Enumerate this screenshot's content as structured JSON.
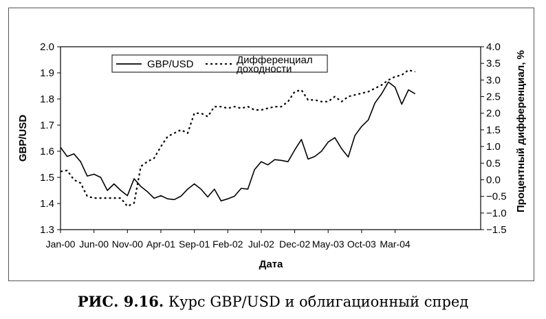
{
  "caption": {
    "number": "РИС. 9.16.",
    "text": "Курс GBP/USD и облигационный спред"
  },
  "chart_data": {
    "type": "line",
    "title": "",
    "xlabel": "Дата",
    "ylabel": "GBP/USD",
    "y2label": "Процентный дифференциал, %",
    "ylim": [
      1.3,
      2.0
    ],
    "y2lim": [
      -1.5,
      4.0
    ],
    "yticks": [
      "2.0",
      "1.9",
      "1.8",
      "1.7",
      "1.6",
      "1.5",
      "1.4",
      "1.3"
    ],
    "y2ticks": [
      "4.0",
      "3.5",
      "3.0",
      "2.5",
      "2.0",
      "1.5",
      "1.0",
      "0.5",
      "0.0",
      "−0.5",
      "−1.0",
      "−1.5"
    ],
    "xticks": [
      "Jan-00",
      "Jun-00",
      "Nov-00",
      "Apr-01",
      "Sep-01",
      "Feb-02",
      "Jul-02",
      "Dec-02",
      "May-03",
      "Oct-03",
      "Mar-04"
    ],
    "grid": false,
    "legend_position": "top-left",
    "series": [
      {
        "name": "GBP/USD",
        "axis": "left",
        "style": "solid",
        "values": [
          1.615,
          1.58,
          1.59,
          1.56,
          1.505,
          1.512,
          1.5,
          1.45,
          1.475,
          1.45,
          1.43,
          1.495,
          1.465,
          1.445,
          1.42,
          1.43,
          1.418,
          1.415,
          1.428,
          1.455,
          1.475,
          1.455,
          1.425,
          1.455,
          1.41,
          1.418,
          1.428,
          1.458,
          1.455,
          1.53,
          1.56,
          1.548,
          1.568,
          1.565,
          1.56,
          1.605,
          1.645,
          1.57,
          1.58,
          1.6,
          1.635,
          1.652,
          1.61,
          1.578,
          1.66,
          1.695,
          1.72,
          1.785,
          1.82,
          1.865,
          1.845,
          1.78,
          1.835,
          1.82
        ]
      },
      {
        "name": "Дифференциал доходности",
        "axis": "right",
        "style": "dotted",
        "values": [
          0.25,
          0.28,
          0.0,
          -0.1,
          -0.5,
          -0.55,
          -0.55,
          -0.55,
          -0.55,
          -0.55,
          -0.8,
          -0.7,
          0.4,
          0.55,
          0.65,
          1.0,
          1.3,
          1.4,
          1.5,
          1.4,
          2.0,
          2.0,
          1.9,
          2.2,
          2.2,
          2.15,
          2.2,
          2.15,
          2.2,
          2.1,
          2.1,
          2.15,
          2.2,
          2.2,
          2.35,
          2.65,
          2.7,
          2.4,
          2.4,
          2.35,
          2.35,
          2.5,
          2.35,
          2.5,
          2.55,
          2.6,
          2.65,
          2.75,
          2.85,
          3.0,
          3.1,
          3.15,
          3.3,
          3.25
        ]
      }
    ]
  }
}
